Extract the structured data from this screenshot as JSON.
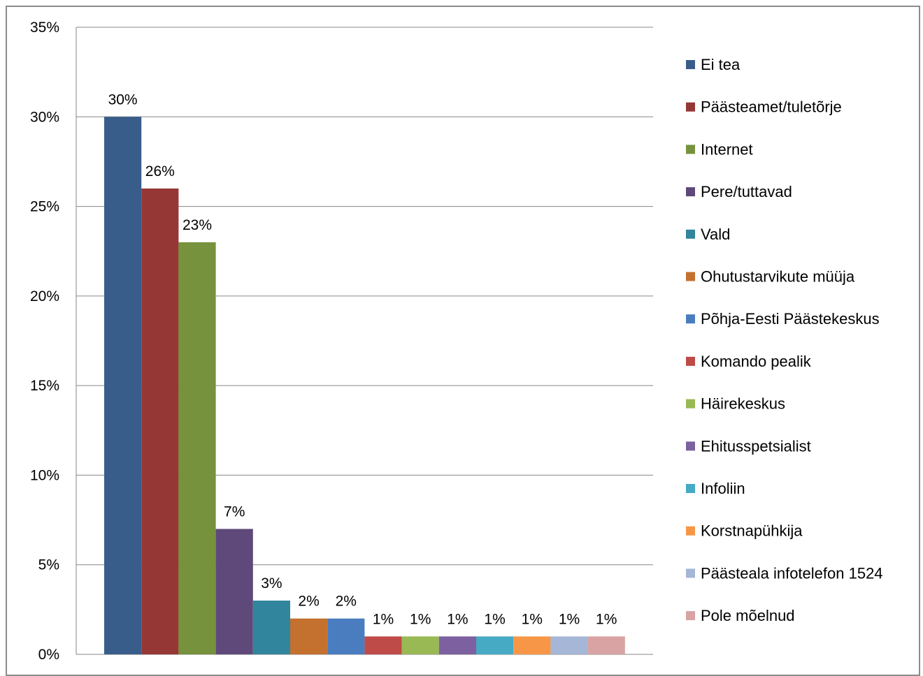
{
  "chart_data": {
    "type": "bar",
    "title": "",
    "xlabel": "",
    "ylabel": "",
    "ylim": [
      0,
      35
    ],
    "y_ticks": [
      "0%",
      "5%",
      "10%",
      "15%",
      "20%",
      "25%",
      "30%",
      "35%"
    ],
    "y_tick_values": [
      0,
      5,
      10,
      15,
      20,
      25,
      30,
      35
    ],
    "grid": true,
    "legend_position": "right",
    "categories": [
      "Ei tea",
      "Päästeamet/tuletõrje",
      "Internet",
      "Pere/tuttavad",
      "Vald",
      "Ohutustarvikute müüja",
      "Põhja-Eesti Päästekeskus",
      "Komando pealik",
      "Häirekeskus",
      "Ehitusspetsialist",
      "Infoliin",
      "Korstnapühkija",
      "Päästeala infotelefon 1524",
      "Pole mõelnud"
    ],
    "values": [
      30,
      26,
      23,
      7,
      3,
      2,
      2,
      1,
      1,
      1,
      1,
      1,
      1,
      1
    ],
    "data_labels": [
      "30%",
      "26%",
      "23%",
      "7%",
      "3%",
      "2%",
      "2%",
      "1%",
      "1%",
      "1%",
      "1%",
      "1%",
      "1%",
      "1%"
    ],
    "colors": [
      "#385d8a",
      "#953735",
      "#76923c",
      "#5f497a",
      "#31859c",
      "#c4702f",
      "#4a7dc0",
      "#be4b48",
      "#98b954",
      "#7d60a0",
      "#46aac5",
      "#f79646",
      "#a5b6d6",
      "#d8a3a2"
    ]
  }
}
